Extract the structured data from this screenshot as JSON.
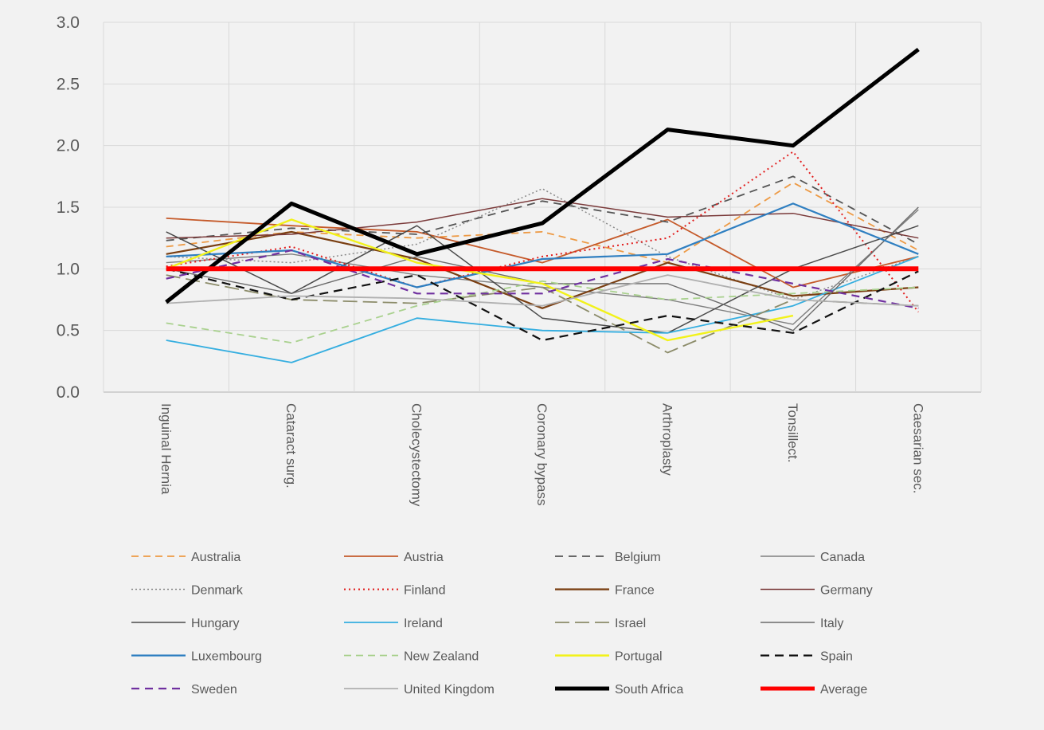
{
  "chart_data": {
    "type": "line",
    "title": "",
    "xlabel": "",
    "ylabel": "",
    "ylim": [
      0,
      3
    ],
    "y_ticks": [
      "0.0",
      "0.5",
      "1.0",
      "1.5",
      "2.0",
      "2.5",
      "3.0"
    ],
    "grid": true,
    "legend_position": "bottom",
    "categories": [
      "Inguinal Hernia",
      "Cataract surg.",
      "Cholecystectomy",
      "Coronary bypass",
      "Arthroplasty",
      "Tonsillect.",
      "Caesarian sec."
    ],
    "series": [
      {
        "name": "Australia",
        "values": [
          1.18,
          1.3,
          1.25,
          1.3,
          1.05,
          1.7,
          1.15
        ],
        "color": "#ed9a45",
        "width": 1.8,
        "dash": "9,6"
      },
      {
        "name": "Austria",
        "values": [
          1.41,
          1.35,
          1.3,
          1.05,
          1.4,
          0.85,
          1.1
        ],
        "color": "#c55a2a",
        "width": 1.8,
        "dash": ""
      },
      {
        "name": "Belgium",
        "values": [
          1.23,
          1.33,
          1.28,
          1.55,
          1.38,
          1.75,
          1.2
        ],
        "color": "#555555",
        "width": 1.8,
        "dash": "10,7"
      },
      {
        "name": "Canada",
        "values": [
          1.05,
          1.12,
          0.95,
          0.85,
          0.75,
          0.55,
          1.48
        ],
        "color": "#7f7f7f",
        "width": 1.4,
        "dash": ""
      },
      {
        "name": "Denmark",
        "values": [
          1.1,
          1.05,
          1.2,
          1.65,
          1.1,
          0.75,
          1.1
        ],
        "color": "#8a8a8a",
        "width": 1.5,
        "dash": "2,3"
      },
      {
        "name": "Finland",
        "values": [
          1.02,
          1.18,
          0.85,
          1.1,
          1.25,
          1.95,
          0.65
        ],
        "color": "#e21d1d",
        "width": 2.0,
        "dash": "2,4"
      },
      {
        "name": "France",
        "values": [
          1.12,
          1.3,
          1.08,
          0.68,
          1.05,
          0.78,
          0.85
        ],
        "color": "#7a3f12",
        "width": 2.2,
        "dash": ""
      },
      {
        "name": "Germany",
        "values": [
          1.25,
          1.28,
          1.38,
          1.57,
          1.42,
          1.45,
          1.25
        ],
        "color": "#7a3a3a",
        "width": 1.5,
        "dash": ""
      },
      {
        "name": "Hungary",
        "values": [
          1.3,
          0.8,
          1.35,
          0.6,
          0.48,
          1.0,
          1.35
        ],
        "color": "#4a4a4a",
        "width": 1.5,
        "dash": ""
      },
      {
        "name": "Ireland",
        "values": [
          0.42,
          0.24,
          0.6,
          0.5,
          0.48,
          0.7,
          1.1
        ],
        "color": "#35aee0",
        "width": 1.8,
        "dash": ""
      },
      {
        "name": "Israel",
        "values": [
          0.95,
          0.75,
          0.72,
          0.85,
          0.32,
          0.75,
          0.7
        ],
        "color": "#8c8c6a",
        "width": 1.8,
        "dash": "18,7"
      },
      {
        "name": "Italy",
        "values": [
          1.0,
          0.8,
          1.1,
          0.88,
          0.88,
          0.5,
          1.5
        ],
        "color": "#6b6b6b",
        "width": 1.4,
        "dash": ""
      },
      {
        "name": "Luxembourg",
        "values": [
          1.1,
          1.15,
          0.85,
          1.08,
          1.12,
          1.53,
          1.12
        ],
        "color": "#2f7fc1",
        "width": 2.2,
        "dash": ""
      },
      {
        "name": "New Zealand",
        "values": [
          0.56,
          0.4,
          0.7,
          0.9,
          0.75,
          0.8,
          0.85
        ],
        "color": "#a9d18e",
        "width": 1.8,
        "dash": "9,6"
      },
      {
        "name": "Portugal",
        "values": [
          1.0,
          1.4,
          1.05,
          0.88,
          0.42,
          0.62,
          null
        ],
        "color": "#f2f21a",
        "width": 2.4,
        "dash": ""
      },
      {
        "name": "Spain",
        "values": [
          1.0,
          0.75,
          0.95,
          0.42,
          0.62,
          0.48,
          0.98
        ],
        "color": "#111111",
        "width": 2.2,
        "dash": "11,7"
      },
      {
        "name": "Sweden",
        "values": [
          0.92,
          1.15,
          0.8,
          0.8,
          1.08,
          0.88,
          0.68
        ],
        "color": "#7030a0",
        "width": 2.2,
        "dash": "10,7"
      },
      {
        "name": "United Kingdom",
        "values": [
          0.72,
          0.78,
          0.76,
          0.7,
          0.95,
          0.75,
          0.7
        ],
        "color": "#b0b0b0",
        "width": 1.8,
        "dash": ""
      },
      {
        "name": "South Africa",
        "values": [
          0.73,
          1.53,
          1.12,
          1.37,
          2.13,
          2.0,
          2.78
        ],
        "color": "#000000",
        "width": 5,
        "dash": ""
      },
      {
        "name": "Average",
        "values": [
          1.0,
          1.0,
          1.0,
          1.0,
          1.0,
          1.0,
          1.0
        ],
        "color": "#ff0000",
        "width": 6,
        "dash": ""
      }
    ]
  }
}
